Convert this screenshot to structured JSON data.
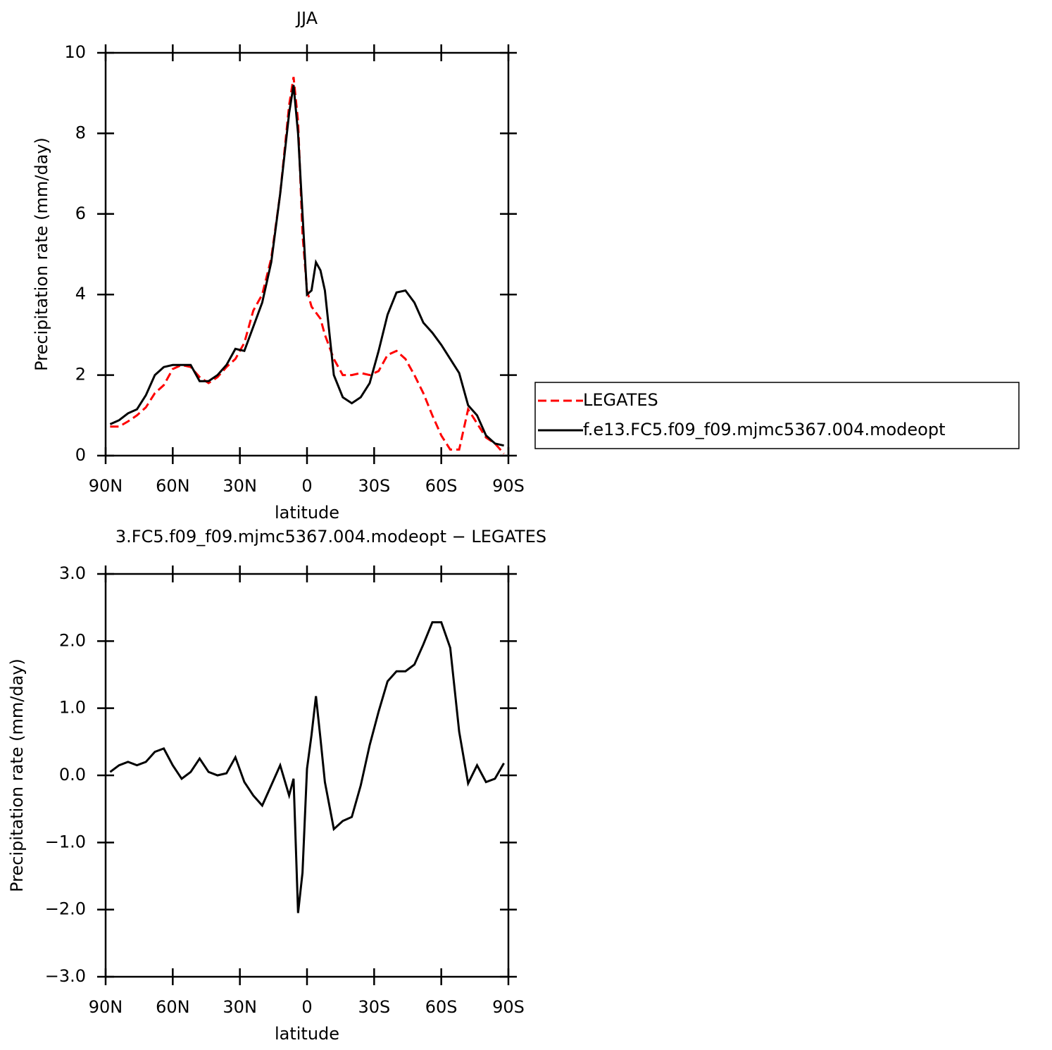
{
  "chart_data": [
    {
      "type": "line",
      "title": "JJA",
      "xlabel": "latitude",
      "ylabel": "Precipitation rate (mm/day)",
      "x": [
        88,
        84,
        80,
        76,
        72,
        68,
        64,
        60,
        56,
        52,
        48,
        44,
        40,
        36,
        32,
        28,
        24,
        20,
        16,
        12,
        8,
        6,
        4,
        2,
        0,
        -2,
        -4,
        -6,
        -8,
        -12,
        -16,
        -20,
        -24,
        -28,
        -32,
        -36,
        -40,
        -44,
        -48,
        -52,
        -56,
        -60,
        -64,
        -68,
        -72,
        -76,
        -80,
        -84,
        -88
      ],
      "series": [
        {
          "name": "LEGATES",
          "color": "#ff0000",
          "line_style": "dashed",
          "values": [
            0.72,
            0.72,
            0.85,
            1.0,
            1.2,
            1.55,
            1.75,
            2.15,
            2.25,
            2.2,
            1.95,
            1.8,
            1.95,
            2.2,
            2.4,
            2.8,
            3.6,
            4.0,
            4.9,
            6.5,
            8.7,
            9.4,
            8.3,
            5.5,
            4.1,
            3.7,
            3.55,
            3.4,
            3.0,
            2.4,
            2.0,
            2.0,
            2.05,
            2.0,
            2.1,
            2.5,
            2.6,
            2.4,
            2.0,
            1.55,
            1.0,
            0.5,
            0.15,
            0.15,
            1.15,
            0.8,
            0.45,
            0.3,
            0.05
          ]
        },
        {
          "name": "f.e13.FC5.f09_f09.mjmc5367.004.modeopt",
          "color": "#000000",
          "line_style": "solid",
          "values": [
            0.78,
            0.88,
            1.05,
            1.15,
            1.5,
            2.0,
            2.2,
            2.25,
            2.25,
            2.25,
            1.85,
            1.85,
            2.0,
            2.25,
            2.65,
            2.6,
            3.2,
            3.8,
            4.8,
            6.5,
            8.5,
            9.2,
            8.0,
            6.0,
            4.0,
            4.1,
            4.8,
            4.6,
            4.1,
            2.0,
            1.45,
            1.3,
            1.45,
            1.8,
            2.6,
            3.5,
            4.05,
            4.1,
            3.8,
            3.3,
            3.05,
            2.75,
            2.4,
            2.05,
            1.25,
            1.0,
            0.5,
            0.3,
            0.25
          ]
        }
      ],
      "xlim": [
        90,
        -90
      ],
      "xticks": [
        {
          "value": 90,
          "label": "90N"
        },
        {
          "value": 60,
          "label": "60N"
        },
        {
          "value": 30,
          "label": "30N"
        },
        0,
        {
          "value": -30,
          "label": "30S"
        },
        {
          "value": -60,
          "label": "60S"
        },
        {
          "value": -90,
          "label": "90S"
        }
      ],
      "ylim": [
        0,
        10
      ],
      "yticks": [
        0,
        2,
        4,
        6,
        8,
        10
      ],
      "legend": "right"
    },
    {
      "type": "line",
      "title": "3.FC5.f09_f09.mjmc5367.004.modeopt − LEGATES",
      "xlabel": "latitude",
      "ylabel": "Precipitation rate (mm/day)",
      "x": [
        88,
        84,
        80,
        76,
        72,
        68,
        64,
        60,
        56,
        52,
        48,
        44,
        40,
        36,
        32,
        28,
        24,
        20,
        16,
        12,
        8,
        6,
        4,
        2,
        0,
        -2,
        -4,
        -6,
        -8,
        -12,
        -16,
        -20,
        -24,
        -28,
        -32,
        -36,
        -40,
        -44,
        -48,
        -52,
        -56,
        -60,
        -64,
        -68,
        -72,
        -76,
        -80,
        -84,
        -88
      ],
      "series": [
        {
          "color": "#000000",
          "line_style": "solid",
          "values": [
            0.05,
            0.15,
            0.2,
            0.15,
            0.2,
            0.35,
            0.4,
            0.15,
            -0.05,
            0.05,
            0.25,
            0.05,
            0.0,
            0.03,
            0.27,
            -0.1,
            -0.3,
            -0.45,
            -0.15,
            0.15,
            -0.3,
            -0.05,
            -2.05,
            -1.45,
            0.1,
            0.6,
            1.18,
            0.55,
            -0.1,
            -0.8,
            -0.68,
            -0.62,
            -0.15,
            0.45,
            0.95,
            1.4,
            1.55,
            1.55,
            1.65,
            1.95,
            2.28,
            2.28,
            1.9,
            0.65,
            -0.12,
            0.15,
            -0.1,
            -0.05,
            0.18
          ]
        }
      ],
      "xlim": [
        90,
        -90
      ],
      "xticks": [
        {
          "value": 90,
          "label": "90N"
        },
        {
          "value": 60,
          "label": "60N"
        },
        {
          "value": 30,
          "label": "30N"
        },
        0,
        {
          "value": -30,
          "label": "30S"
        },
        {
          "value": -60,
          "label": "60S"
        },
        {
          "value": -90,
          "label": "90S"
        }
      ],
      "ylim": [
        -3,
        3
      ],
      "yticks": [
        {
          "value": -3,
          "label": "−3.0"
        },
        {
          "value": -2,
          "label": "−2.0"
        },
        {
          "value": -1,
          "label": "−1.0"
        },
        {
          "value": 0,
          "label": "0.0"
        },
        {
          "value": 1,
          "label": "1.0"
        },
        {
          "value": 2,
          "label": "2.0"
        },
        {
          "value": 3,
          "label": "3.0"
        }
      ]
    }
  ]
}
